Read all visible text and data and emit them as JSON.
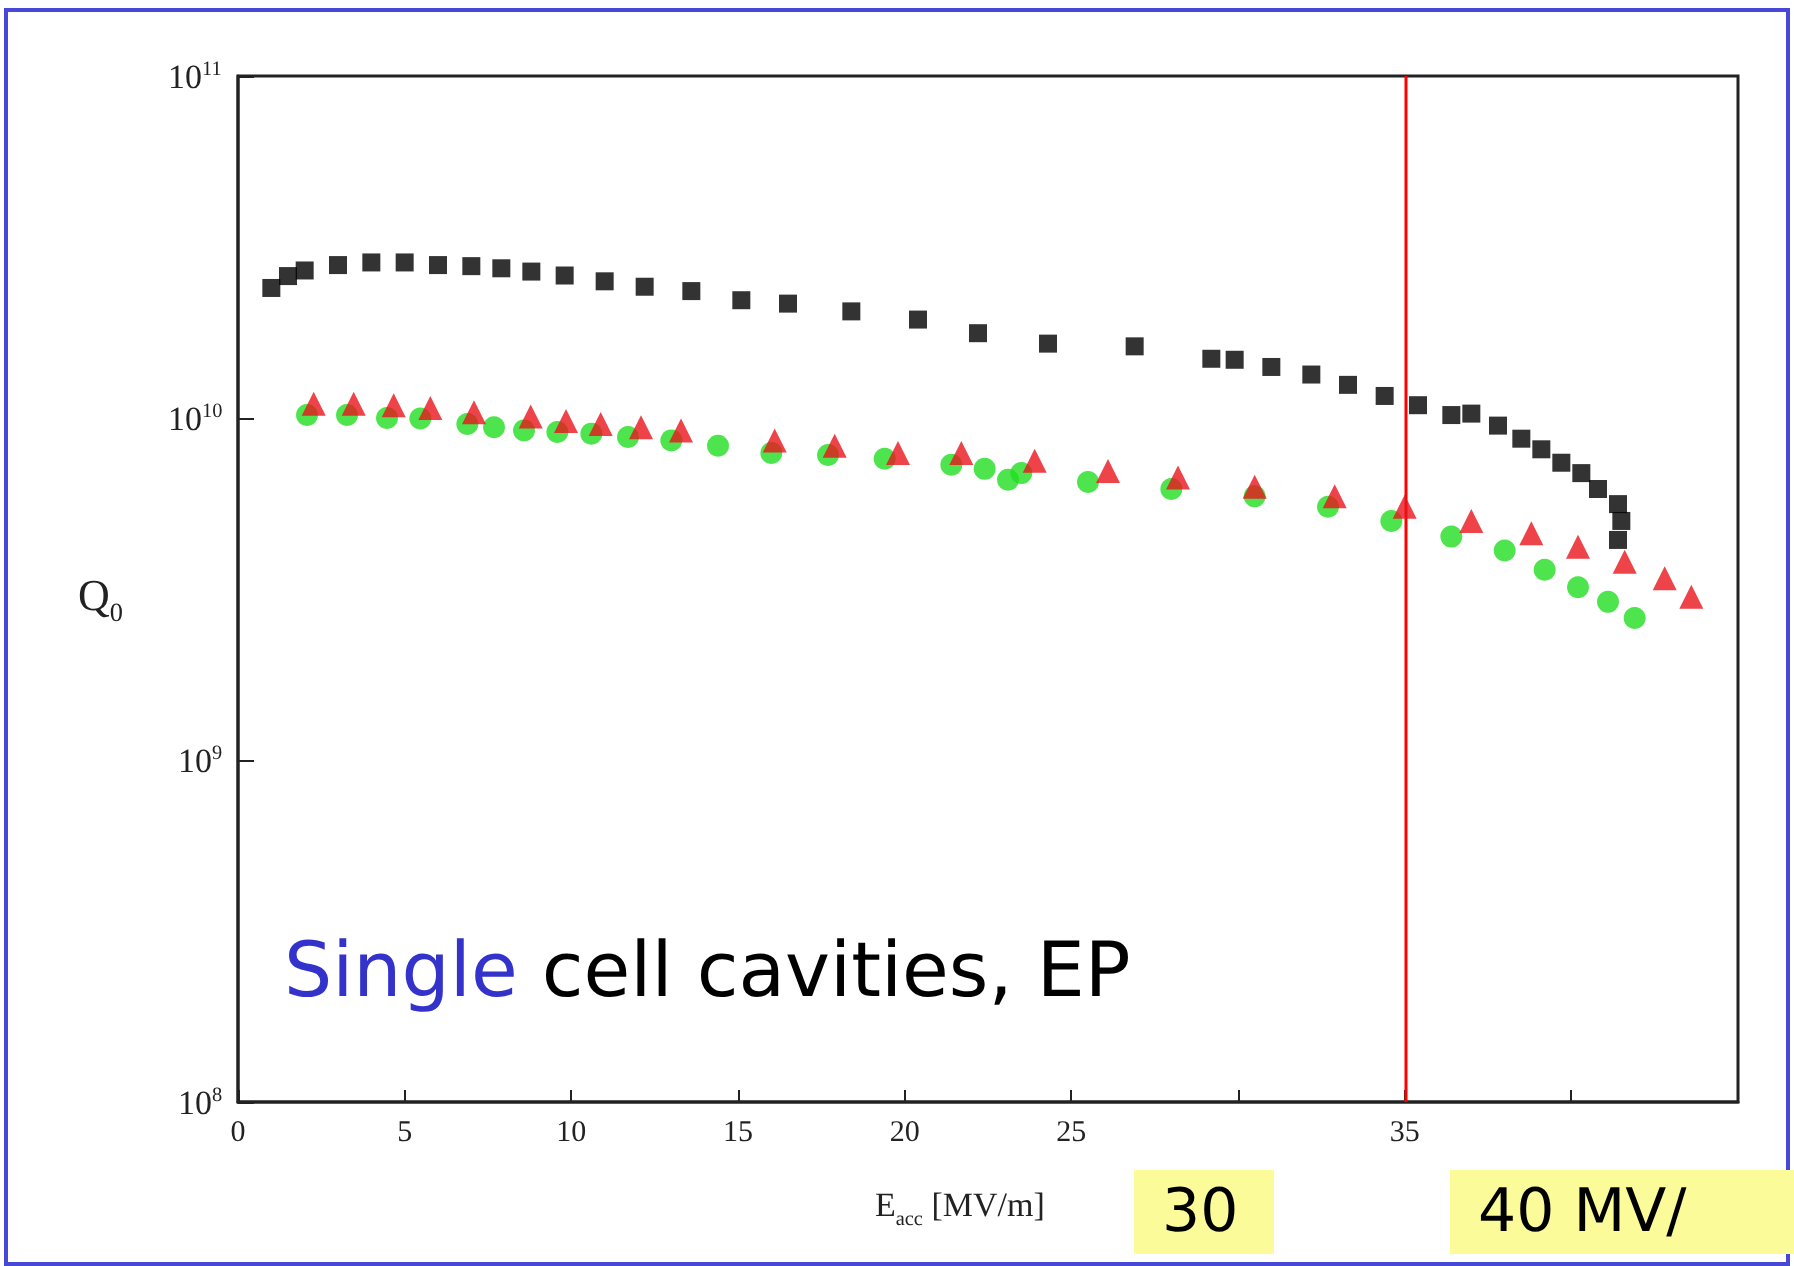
{
  "chart_data": {
    "type": "scatter",
    "xlabel": "E$_{acc}$ [MV/m]",
    "ylabel": "Q$_{0}$",
    "log": "y",
    "xlim": [
      0,
      45
    ],
    "ylim": [
      100000000,
      100000000000
    ],
    "xticks": [
      0,
      5,
      10,
      15,
      20,
      25,
      {
        "value": 30,
        "label": null
      },
      35,
      {
        "value": 40,
        "label": null
      }
    ],
    "yticks": [
      {
        "value": 100000000,
        "label": "10$^{8}$"
      },
      {
        "value": 1000000000,
        "label": "10$^{9}$"
      },
      {
        "value": 10000000000,
        "label": "10$^{10}$"
      },
      {
        "value": 100000000000,
        "label": "10$^{11}$"
      }
    ],
    "grid": false,
    "series": [
      {
        "color": "#000000",
        "marker": "square",
        "x": [
          1.0,
          1.5,
          2,
          3,
          4,
          5,
          6,
          7.0,
          7.9,
          8.8,
          9.8,
          11.0,
          12.2,
          13.6,
          15.1,
          16.5,
          18.4,
          20.4,
          22.2,
          24.3,
          26.9,
          29.2,
          29.9,
          31.0,
          32.2,
          33.3,
          34.4,
          35.4,
          36.4,
          37.0,
          37.8,
          38.5,
          39.1,
          39.7,
          40.3,
          40.8,
          41.4,
          41.5,
          41.4
        ],
        "values": [
          24000000000,
          26000000000,
          27000000000,
          28000000000,
          28500000000,
          28500000000,
          28000000000,
          27800000000,
          27400000000,
          26800000000,
          26100000000,
          25100000000,
          24200000000,
          23500000000,
          22100000000,
          21600000000,
          20500000000,
          19400000000,
          17700000000,
          16500000000,
          16200000000,
          14900000000,
          14800000000,
          14100000000,
          13400000000,
          12500000000,
          11600000000,
          10900000000,
          10200000000,
          10300000000,
          9500000000,
          8700000000,
          8100000000,
          7400000000,
          6900000000,
          6200000000,
          5600000000,
          5000000000,
          4400000000
        ]
      },
      {
        "color": "#e8141c",
        "marker": "triangle",
        "x": [
          2.27,
          3.47,
          4.67,
          5.77,
          7.08,
          8.78,
          9.84,
          10.88,
          12.09,
          13.29,
          16.1,
          17.9,
          19.8,
          21.7,
          23.9,
          26.1,
          28.2,
          30.5,
          32.9,
          35.0,
          37.0,
          38.8,
          40.2,
          41.6,
          42.8,
          43.6
        ],
        "values": [
          11000000000,
          11000000000,
          10900000000,
          10700000000,
          10400000000,
          10100000000,
          9800000000,
          9600000000,
          9400000000,
          9200000000,
          8600000000,
          8300000000,
          7900000000,
          7900000000,
          7500000000,
          7000000000,
          6700000000,
          6300000000,
          5900000000,
          5500000000,
          5000000000,
          4600000000,
          4200000000,
          3800000000,
          3400000000,
          3000000000
        ]
      },
      {
        "color": "#22dd22",
        "marker": "circle",
        "x": [
          2.07,
          3.27,
          4.47,
          5.47,
          6.88,
          7.68,
          8.58,
          9.58,
          10.6,
          11.7,
          13.0,
          14.4,
          16.0,
          17.7,
          19.4,
          21.4,
          22.4,
          23.1,
          23.5,
          25.5,
          28.0,
          30.5,
          32.7,
          34.6,
          36.4,
          38.0,
          39.2,
          40.2,
          41.1,
          41.9
        ],
        "values": [
          10200000000,
          10200000000,
          10000000000,
          9960000000,
          9600000000,
          9400000000,
          9200000000,
          9100000000,
          9000000000,
          8800000000,
          8600000000,
          8300000000,
          7900000000,
          7800000000,
          7600000000,
          7300000000,
          7100000000,
          6600000000,
          6900000000,
          6500000000,
          6200000000,
          5900000000,
          5500000000,
          5000000000,
          4500000000,
          4100000000,
          3600000000,
          3200000000,
          2900000000,
          2600000000
        ]
      }
    ],
    "ref_lines": [
      {
        "axis": "x",
        "value": 35,
        "color": "#ff0000",
        "line_style": "solid"
      }
    ],
    "annotations": [
      "Single cell cavities, EP",
      "30",
      "40 MV/"
    ]
  }
}
